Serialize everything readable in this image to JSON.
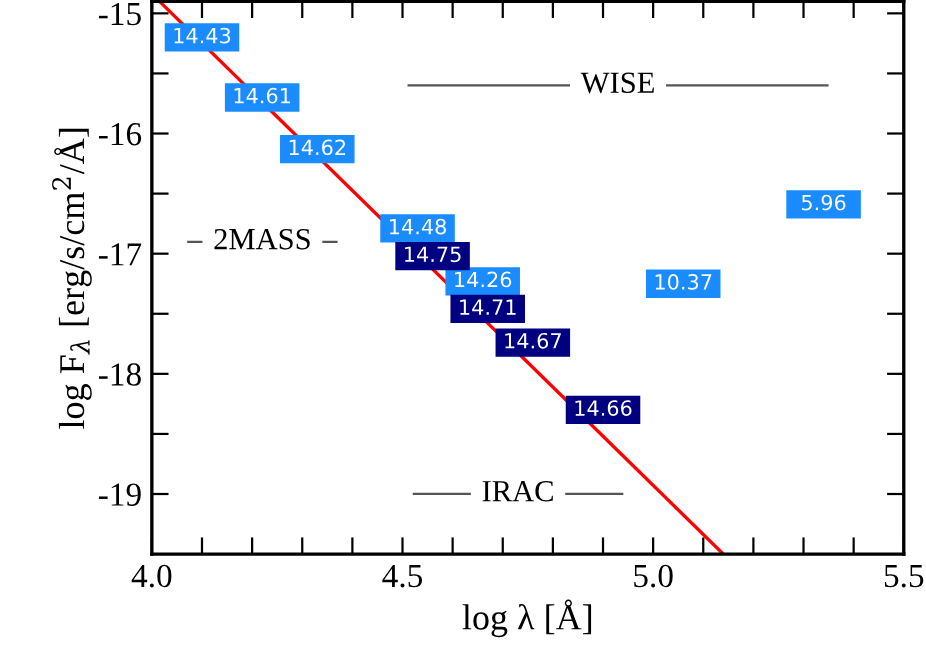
{
  "chart_data": {
    "type": "scatter",
    "xlabel": "log λ [Å]",
    "ylabel": "log F$_{λ}$ [erg/s/cm$^{2}$/Å]",
    "xlim": [
      4.0,
      5.5
    ],
    "ylim": [
      -19.5,
      -14.9
    ],
    "xticks": [
      {
        "value": 4.0,
        "label": "4.0"
      },
      {
        "value": 4.1,
        "label": null
      },
      {
        "value": 4.2,
        "label": null
      },
      {
        "value": 4.3,
        "label": null
      },
      {
        "value": 4.4,
        "label": null
      },
      4.5,
      {
        "value": 4.6,
        "label": null
      },
      {
        "value": 4.7,
        "label": null
      },
      {
        "value": 4.8,
        "label": null
      },
      {
        "value": 4.9,
        "label": null
      },
      {
        "value": 5.0,
        "label": "5.0"
      },
      {
        "value": 5.1,
        "label": null
      },
      {
        "value": 5.2,
        "label": null
      },
      {
        "value": 5.3,
        "label": null
      },
      {
        "value": 5.4,
        "label": null
      },
      5.5
    ],
    "yticks": [
      -15,
      {
        "value": -15.5,
        "label": null
      },
      -16,
      {
        "value": -16.5,
        "label": null
      },
      -17,
      {
        "value": -17.5,
        "label": null
      },
      -18,
      {
        "value": -18.5,
        "label": null
      },
      -19
    ],
    "grid": false,
    "legend": false,
    "marker": "square",
    "series": [
      {
        "type": "line",
        "marker": "none",
        "color": "#ff0000",
        "x": [
          4.015,
          5.14
        ],
        "values": [
          -14.9,
          -19.5
        ]
      },
      {
        "color": "#1a8cff",
        "x": [
          4.1,
          4.22,
          4.33,
          4.53,
          4.66,
          5.06,
          5.34
        ],
        "values": [
          -15.2,
          -15.7,
          -16.13,
          -16.79,
          -17.23,
          -17.25,
          -16.59
        ]
      },
      {
        "color": "#000080",
        "x": [
          4.56,
          4.67,
          4.76,
          4.9
        ],
        "values": [
          -17.02,
          -17.46,
          -17.74,
          -18.3
        ]
      }
    ],
    "annotations": [
      {
        "text": "14.43",
        "x": 4.1,
        "y": -15.2
      },
      {
        "text": "14.61",
        "x": 4.22,
        "y": -15.7
      },
      {
        "text": "14.62",
        "x": 4.33,
        "y": -16.13
      },
      {
        "text": "14.48",
        "x": 4.53,
        "y": -16.79
      },
      {
        "text": "14.26",
        "x": 4.66,
        "y": -17.23
      },
      {
        "text": "10.37",
        "x": 5.06,
        "y": -17.25
      },
      {
        "text": "5.96",
        "x": 5.34,
        "y": -16.59
      },
      {
        "text": "14.75",
        "x": 4.56,
        "y": -17.02
      },
      {
        "text": "14.71",
        "x": 4.67,
        "y": -17.46
      },
      {
        "text": "14.67",
        "x": 4.76,
        "y": -17.74
      },
      {
        "text": "14.66",
        "x": 4.9,
        "y": -18.3
      },
      "WISE",
      "2MASS",
      "IRAC"
    ]
  }
}
